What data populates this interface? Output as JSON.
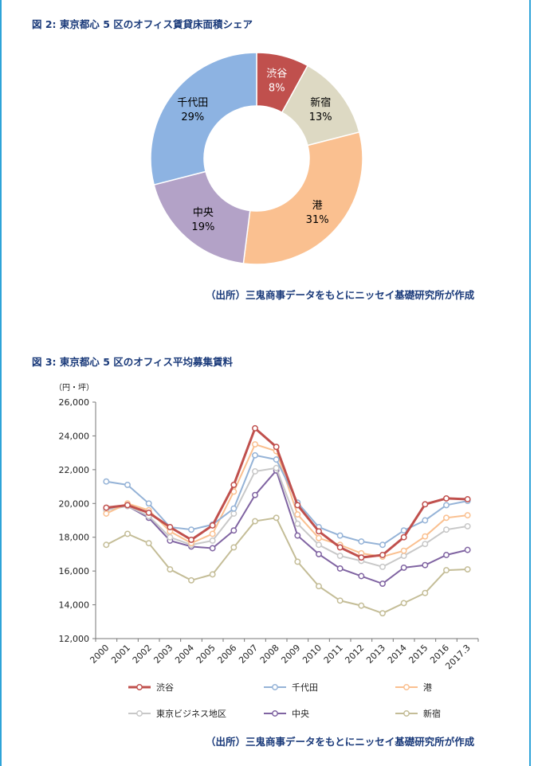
{
  "chart_data": [
    {
      "type": "pie",
      "title": "図 2: 東京都心 5 区のオフィス賃貸床面積シェア",
      "style": "donut",
      "slices": [
        {
          "label": "渋谷",
          "value": 8,
          "display": "8%",
          "color": "#c0504d",
          "text_color": "#ffffff"
        },
        {
          "label": "新宿",
          "value": 13,
          "display": "13%",
          "color": "#ddd9c3",
          "text_color": "#000000"
        },
        {
          "label": "港",
          "value": 31,
          "display": "31%",
          "color": "#fac090",
          "text_color": "#000000"
        },
        {
          "label": "中央",
          "value": 19,
          "display": "19%",
          "color": "#b3a2c7",
          "text_color": "#000000"
        },
        {
          "label": "千代田",
          "value": 29,
          "display": "29%",
          "color": "#8db3e2",
          "text_color": "#000000"
        }
      ],
      "source": "（出所）三鬼商事データをもとにニッセイ基礎研究所が作成"
    },
    {
      "type": "line",
      "title": "図 3: 東京都心 5 区のオフィス平均募集賃料",
      "ylabel": "（円・坪）",
      "ylim": [
        12000,
        26000
      ],
      "yticks": [
        "12,000",
        "14,000",
        "16,000",
        "18,000",
        "20,000",
        "22,000",
        "24,000",
        "26,000"
      ],
      "categories": [
        "2000",
        "2001",
        "2002",
        "2003",
        "2004",
        "2005",
        "2006",
        "2007",
        "2008",
        "2009",
        "2010",
        "2011",
        "2012",
        "2013",
        "2014",
        "2015",
        "2016",
        "2017.3"
      ],
      "grid": false,
      "legend_position": "bottom",
      "series": [
        {
          "name": "渋谷",
          "color": "#c0504d",
          "width": 3,
          "values": [
            19750,
            19900,
            19450,
            18600,
            17850,
            18700,
            21100,
            24450,
            23350,
            19900,
            18350,
            17400,
            16800,
            16950,
            18000,
            19950,
            20300,
            20250
          ]
        },
        {
          "name": "千代田",
          "color": "#95b3d7",
          "width": 2,
          "values": [
            21300,
            21100,
            20000,
            18600,
            18450,
            18750,
            19700,
            22850,
            22600,
            20050,
            18600,
            18100,
            17750,
            17550,
            18400,
            19000,
            19900,
            20150
          ]
        },
        {
          "name": "港",
          "color": "#fac090",
          "width": 2,
          "values": [
            19400,
            20000,
            19600,
            18350,
            17650,
            18200,
            20700,
            23500,
            23100,
            19350,
            17950,
            17550,
            17050,
            16850,
            17200,
            18050,
            19150,
            19300
          ]
        },
        {
          "name": "東京ビジネス地区",
          "color": "#c8c8c8",
          "width": 2,
          "values": [
            19600,
            19850,
            19250,
            18000,
            17550,
            17800,
            19400,
            21900,
            22100,
            18800,
            17550,
            16900,
            16600,
            16250,
            16900,
            17600,
            18450,
            18650
          ]
        },
        {
          "name": "中央",
          "color": "#8064a2",
          "width": 2,
          "values": [
            19650,
            19850,
            19150,
            17800,
            17450,
            17350,
            18400,
            20500,
            21950,
            18100,
            17000,
            16150,
            15700,
            15250,
            16200,
            16350,
            16950,
            17250
          ]
        },
        {
          "name": "新宿",
          "color": "#c4bd97",
          "width": 2,
          "values": [
            17550,
            18200,
            17650,
            16100,
            15450,
            15800,
            17400,
            18950,
            19150,
            16550,
            15100,
            14250,
            13950,
            13500,
            14100,
            14700,
            16050,
            16100
          ]
        }
      ],
      "source": "（出所）三鬼商事データをもとにニッセイ基礎研究所が作成"
    }
  ]
}
